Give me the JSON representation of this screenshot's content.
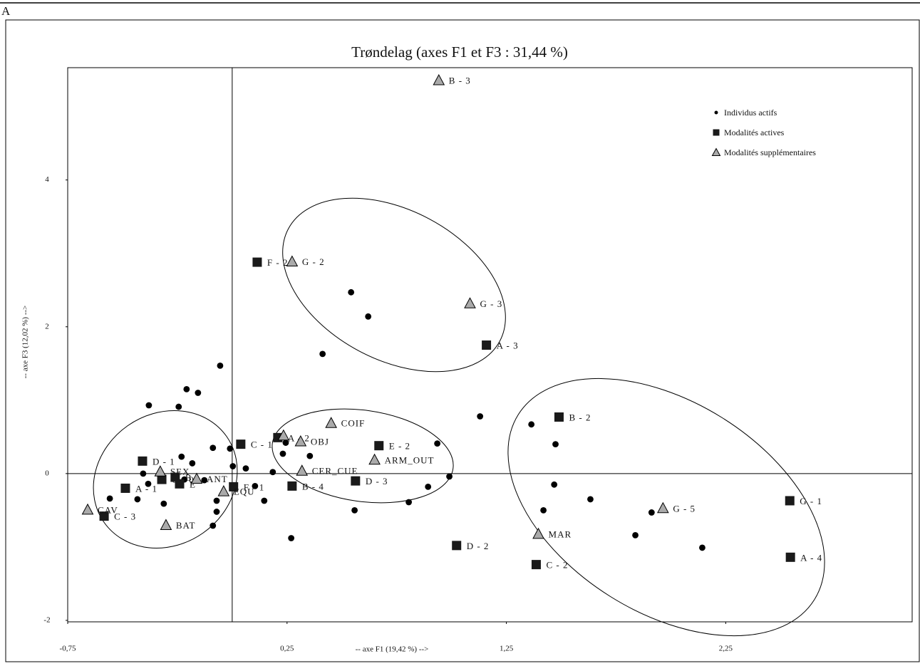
{
  "panel_label": "A",
  "chart_data": {
    "type": "scatter",
    "title": "Trøndelag (axes F1 et F3 : 31,44 %)",
    "x_label": "-- axe F1 (19,42 %) -->",
    "y_label": "-- axe F3 (12,02 %) -->",
    "xlim": [
      -0.75,
      3.1
    ],
    "ylim": [
      -2.02,
      5.53
    ],
    "xticks": [
      {
        "value": -0.75,
        "label": "-0,75"
      },
      {
        "value": 0.25,
        "label": "0,25"
      },
      {
        "value": 1.25,
        "label": "1,25"
      },
      {
        "value": 2.25,
        "label": "2,25"
      }
    ],
    "yticks": [
      -2,
      0,
      2,
      4
    ],
    "legend": "top-right",
    "series": [
      {
        "name": "Individus actifs",
        "marker": "circle",
        "color": "#000000",
        "x": [
          -0.055,
          -0.208,
          -0.156,
          -0.244,
          -0.38,
          0.542,
          0.62,
          0.412,
          1.13,
          1.364,
          1.474,
          0.935,
          0.99,
          0.893,
          0.805,
          0.558,
          0.269,
          0.146,
          0.104,
          0.062,
          0.003,
          -0.01,
          -0.088,
          0.185,
          0.231,
          0.244,
          0.354,
          -0.231,
          -0.182,
          -0.406,
          -0.383,
          -0.432,
          -0.558,
          -0.312,
          -0.218,
          -0.127,
          -0.071,
          -0.071,
          -0.088,
          1.419,
          1.468,
          1.633,
          1.912,
          1.838,
          2.143
        ],
        "values": [
          1.47,
          1.15,
          1.1,
          0.91,
          0.93,
          2.47,
          2.14,
          1.63,
          0.78,
          0.67,
          0.4,
          0.41,
          -0.04,
          -0.18,
          -0.39,
          -0.5,
          -0.88,
          -0.37,
          -0.17,
          0.07,
          0.1,
          0.34,
          0.35,
          0.02,
          0.27,
          0.42,
          0.24,
          0.23,
          0.14,
          0,
          -0.14,
          -0.35,
          -0.34,
          -0.41,
          -0.08,
          -0.09,
          -0.37,
          -0.52,
          -0.71,
          -0.5,
          -0.15,
          -0.35,
          -0.53,
          -0.84,
          -1.01
        ]
      },
      {
        "name": "Modalités actives",
        "marker": "square",
        "color": "#1a1a1a",
        "x": [
          0.114,
          1.159,
          1.49,
          0.669,
          -0.409,
          0.039,
          0.208,
          -0.487,
          -0.584,
          -0.321,
          -0.26,
          -0.24,
          0.006,
          0.273,
          0.562,
          1.023,
          1.386,
          2.542,
          2.545
        ],
        "values": [
          2.88,
          1.75,
          0.77,
          0.38,
          0.17,
          0.4,
          0.49,
          -0.2,
          -0.58,
          -0.08,
          -0.05,
          -0.14,
          -0.18,
          -0.17,
          -0.1,
          -0.98,
          -1.24,
          -0.37,
          -1.14
        ],
        "labels": [
          "F - 2",
          "A - 3",
          "B - 2",
          "E - 2",
          "D - 1",
          "C - 1",
          "A - 2",
          "A - 1",
          "C - 3",
          "G - 0",
          "B",
          "E",
          "F - 1",
          "B - 4",
          "D - 3",
          "D - 2",
          "C - 2",
          "G - 1",
          "A - 4"
        ]
      },
      {
        "name": "Modalités supplémentaires",
        "marker": "triangle",
        "color": "#aaaaaa",
        "x": [
          0.942,
          0.273,
          1.084,
          0.451,
          0.234,
          0.312,
          0.649,
          0.318,
          -0.328,
          -0.162,
          -0.039,
          -0.659,
          -0.302,
          1.396,
          1.964
        ],
        "values": [
          5.36,
          2.89,
          2.32,
          0.69,
          0.52,
          0.44,
          0.19,
          0.04,
          0.03,
          -0.07,
          -0.24,
          -0.49,
          -0.7,
          -0.82,
          -0.47
        ],
        "labels": [
          "B - 3",
          "G - 2",
          "G - 3",
          "COIF",
          null,
          "OBJ",
          "ARM_OUT",
          "CER_CUE",
          "SEX",
          "ANT",
          "EQU",
          "CAV",
          "BAT",
          "MAR",
          "G - 5"
        ]
      }
    ]
  }
}
